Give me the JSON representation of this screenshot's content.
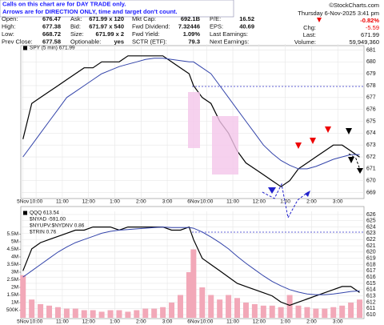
{
  "header": {
    "note": [
      "Calls on this chart are for DAY TRADE only.",
      "Arrows are for DIRECTION ONLY, time and target don't count."
    ],
    "site": "©StockCharts.com",
    "date": "Thursday  6-Nov-2025  3:41 pm",
    "change_pct": "-0.82%",
    "change": [
      "Chg:",
      "-5.59"
    ],
    "last": [
      "Last:",
      "671.99"
    ],
    "volume": [
      "Volume:",
      "59,949,360"
    ],
    "rows": [
      [
        [
          "Open:",
          "676.47"
        ],
        [
          "Ask:",
          "671.99 x 120"
        ],
        [
          "Mkt Cap:",
          "692.1B"
        ],
        [
          "P/E:",
          "16.52"
        ]
      ],
      [
        [
          "High:",
          "677.38"
        ],
        [
          "Bid:",
          "671.97 x 540"
        ],
        [
          "Fwd Dividend:",
          "7.32446"
        ],
        [
          "EPS:",
          "40.69"
        ]
      ],
      [
        [
          "Low:",
          "668.72"
        ],
        [
          "Size:",
          "671.99 x 2"
        ],
        [
          "Fwd Yield:",
          "1.09%"
        ],
        [
          "Last Earnings:"
        ]
      ],
      [
        [
          "Prev Close:",
          "677.58"
        ],
        [
          "Optionable:",
          "yes"
        ],
        [
          "SCTR (ETF):",
          "79.3"
        ],
        [
          "Next Earnings:"
        ]
      ]
    ]
  },
  "chart_data": [
    {
      "type": "line",
      "x": [
        0,
        4,
        8,
        12,
        16,
        20,
        24,
        28,
        32,
        36,
        40,
        44,
        48,
        52,
        56,
        60,
        64,
        68,
        72,
        76,
        78,
        82,
        86,
        90,
        94,
        98,
        102,
        106,
        110,
        114,
        118,
        122,
        126,
        130,
        134,
        138,
        142,
        146,
        150,
        154
      ],
      "series": [
        {
          "name": "SPY (5 min) 671.99",
          "color": "#000000",
          "values": [
            673.5,
            676.5,
            677,
            677.5,
            678,
            678.5,
            679,
            679.5,
            679.5,
            680,
            680,
            680,
            680.5,
            680.5,
            680.5,
            680.5,
            680.5,
            680,
            679.5,
            679,
            678,
            677,
            676.5,
            675,
            674,
            672.5,
            671.5,
            671,
            670.5,
            670,
            669.5,
            670,
            671,
            671.5,
            672,
            672.5,
            673,
            673,
            672.5,
            671.99
          ]
        },
        {
          "color": "#3344aa",
          "values": [
            672,
            673,
            674,
            675,
            676,
            677,
            677.5,
            678,
            678.5,
            679,
            679.3,
            679.6,
            679.8,
            680,
            680.2,
            680.3,
            680.3,
            680.2,
            680.1,
            680,
            680,
            679.5,
            679,
            678,
            677,
            676,
            675,
            674,
            673,
            672.3,
            671.7,
            671.3,
            671,
            671,
            671.2,
            671.5,
            671.8,
            672,
            672.2,
            672.2
          ]
        }
      ],
      "xlim": [
        -1,
        156
      ],
      "xticks": [
        {
          "value": 0,
          "label": "5Nov"
        },
        {
          "value": 6,
          "label": "10:00"
        },
        {
          "value": 18,
          "label": "11:00"
        },
        {
          "value": 30,
          "label": "12:00"
        },
        {
          "value": 42,
          "label": "1:00"
        },
        {
          "value": 54,
          "label": "2:00"
        },
        {
          "value": 66,
          "label": "3:00"
        },
        {
          "value": 78,
          "label": "6Nov"
        },
        {
          "value": 84,
          "label": "10:00"
        },
        {
          "value": 96,
          "label": "11:00"
        },
        {
          "value": 108,
          "label": "12:00"
        },
        {
          "value": 120,
          "label": "1:00"
        },
        {
          "value": 132,
          "label": "2:00"
        },
        {
          "value": 144,
          "label": "3:00"
        }
      ],
      "ylim": [
        668.5,
        681.5
      ],
      "yticks": [
        669,
        670,
        671,
        672,
        673,
        674,
        675,
        676,
        677,
        678,
        679,
        680,
        681
      ],
      "grid": true
    },
    {
      "type": "line",
      "x": [
        0,
        4,
        8,
        12,
        16,
        20,
        24,
        28,
        32,
        36,
        40,
        44,
        48,
        52,
        56,
        60,
        64,
        68,
        72,
        76,
        78,
        82,
        86,
        90,
        94,
        98,
        102,
        106,
        110,
        114,
        118,
        122,
        126,
        130,
        134,
        138,
        142,
        146,
        150,
        154
      ],
      "indicators": [
        "$NYAD -591.00",
        "$NYUPV:$NYDNV 0.86",
        "$TRIN 0.76"
      ],
      "series": [
        {
          "name": "QQQ 613.54",
          "color": "#000000",
          "values": [
            617,
            620.5,
            621.5,
            622,
            622.5,
            623,
            623.5,
            623.5,
            624,
            624,
            624,
            623.5,
            624,
            624,
            624,
            624,
            624,
            623.5,
            623.5,
            624,
            622,
            619,
            618,
            617,
            616,
            615,
            614.5,
            614,
            613.5,
            613,
            612,
            611.5,
            612,
            612.5,
            613,
            613.5,
            614,
            614.5,
            614.5,
            613.54
          ]
        },
        {
          "color": "#3344aa",
          "values": [
            616,
            617,
            618,
            619,
            620,
            620.8,
            621.5,
            622,
            622.5,
            623,
            623.3,
            623.5,
            623.6,
            623.7,
            623.8,
            623.9,
            624,
            623.9,
            623.9,
            623.9,
            623.8,
            623.2,
            622.4,
            621.5,
            620.5,
            619.3,
            618.2,
            617.2,
            616.2,
            615.3,
            614.6,
            614,
            613.6,
            613.3,
            613.2,
            613.2,
            613.3,
            613.5,
            613.7,
            613.8
          ]
        },
        {
          "type": "bar",
          "axis": "y2",
          "color": "#f2a8b8",
          "values": [
            2800000,
            1200000,
            900000,
            800000,
            700000,
            600000,
            600000,
            500000,
            500000,
            400000,
            500000,
            500000,
            400000,
            500000,
            600000,
            600000,
            700000,
            1000000,
            1500000,
            3000000,
            4500000,
            2000000,
            1500000,
            1200000,
            1500000,
            1300000,
            1000000,
            900000,
            800000,
            800000,
            700000,
            1500000,
            800000,
            700000,
            600000,
            600000,
            700000,
            800000,
            1000000,
            1200000
          ]
        }
      ],
      "xlim": [
        -1,
        156
      ],
      "xticks": [
        {
          "value": 0,
          "label": "5Nov"
        },
        {
          "value": 6,
          "label": "10:00"
        },
        {
          "value": 18,
          "label": "11:00"
        },
        {
          "value": 30,
          "label": "12:00"
        },
        {
          "value": 42,
          "label": "1:00"
        },
        {
          "value": 54,
          "label": "2:00"
        },
        {
          "value": 66,
          "label": "3:00"
        },
        {
          "value": 78,
          "label": "6Nov"
        },
        {
          "value": 84,
          "label": "10:00"
        },
        {
          "value": 96,
          "label": "11:00"
        },
        {
          "value": 108,
          "label": "12:00"
        },
        {
          "value": 120,
          "label": "1:00"
        },
        {
          "value": 132,
          "label": "2:00"
        },
        {
          "value": 144,
          "label": "3:00"
        }
      ],
      "ylim": [
        609.5,
        626.5
      ],
      "yticks": [
        610,
        611,
        612,
        613,
        614,
        615,
        616,
        617,
        618,
        619,
        620,
        621,
        622,
        623,
        624,
        625,
        626
      ],
      "y2lim": [
        0,
        7000000
      ],
      "y2ticks": [
        {
          "value": 500000,
          "label": "500K"
        },
        {
          "value": 1000000,
          "label": "1M"
        },
        {
          "value": 1500000,
          "label": "1.5M"
        },
        {
          "value": 2000000,
          "label": "2M"
        },
        {
          "value": 2500000,
          "label": "2.5M"
        },
        {
          "value": 3000000,
          "label": "3M"
        },
        {
          "value": 3500000,
          "label": "3.5M"
        },
        {
          "value": 4000000,
          "label": "4M"
        },
        {
          "value": 4500000,
          "label": "4.5M"
        },
        {
          "value": 5000000,
          "label": "5M"
        },
        {
          "value": 5500000,
          "label": "5.5M"
        }
      ],
      "grid": true
    }
  ]
}
